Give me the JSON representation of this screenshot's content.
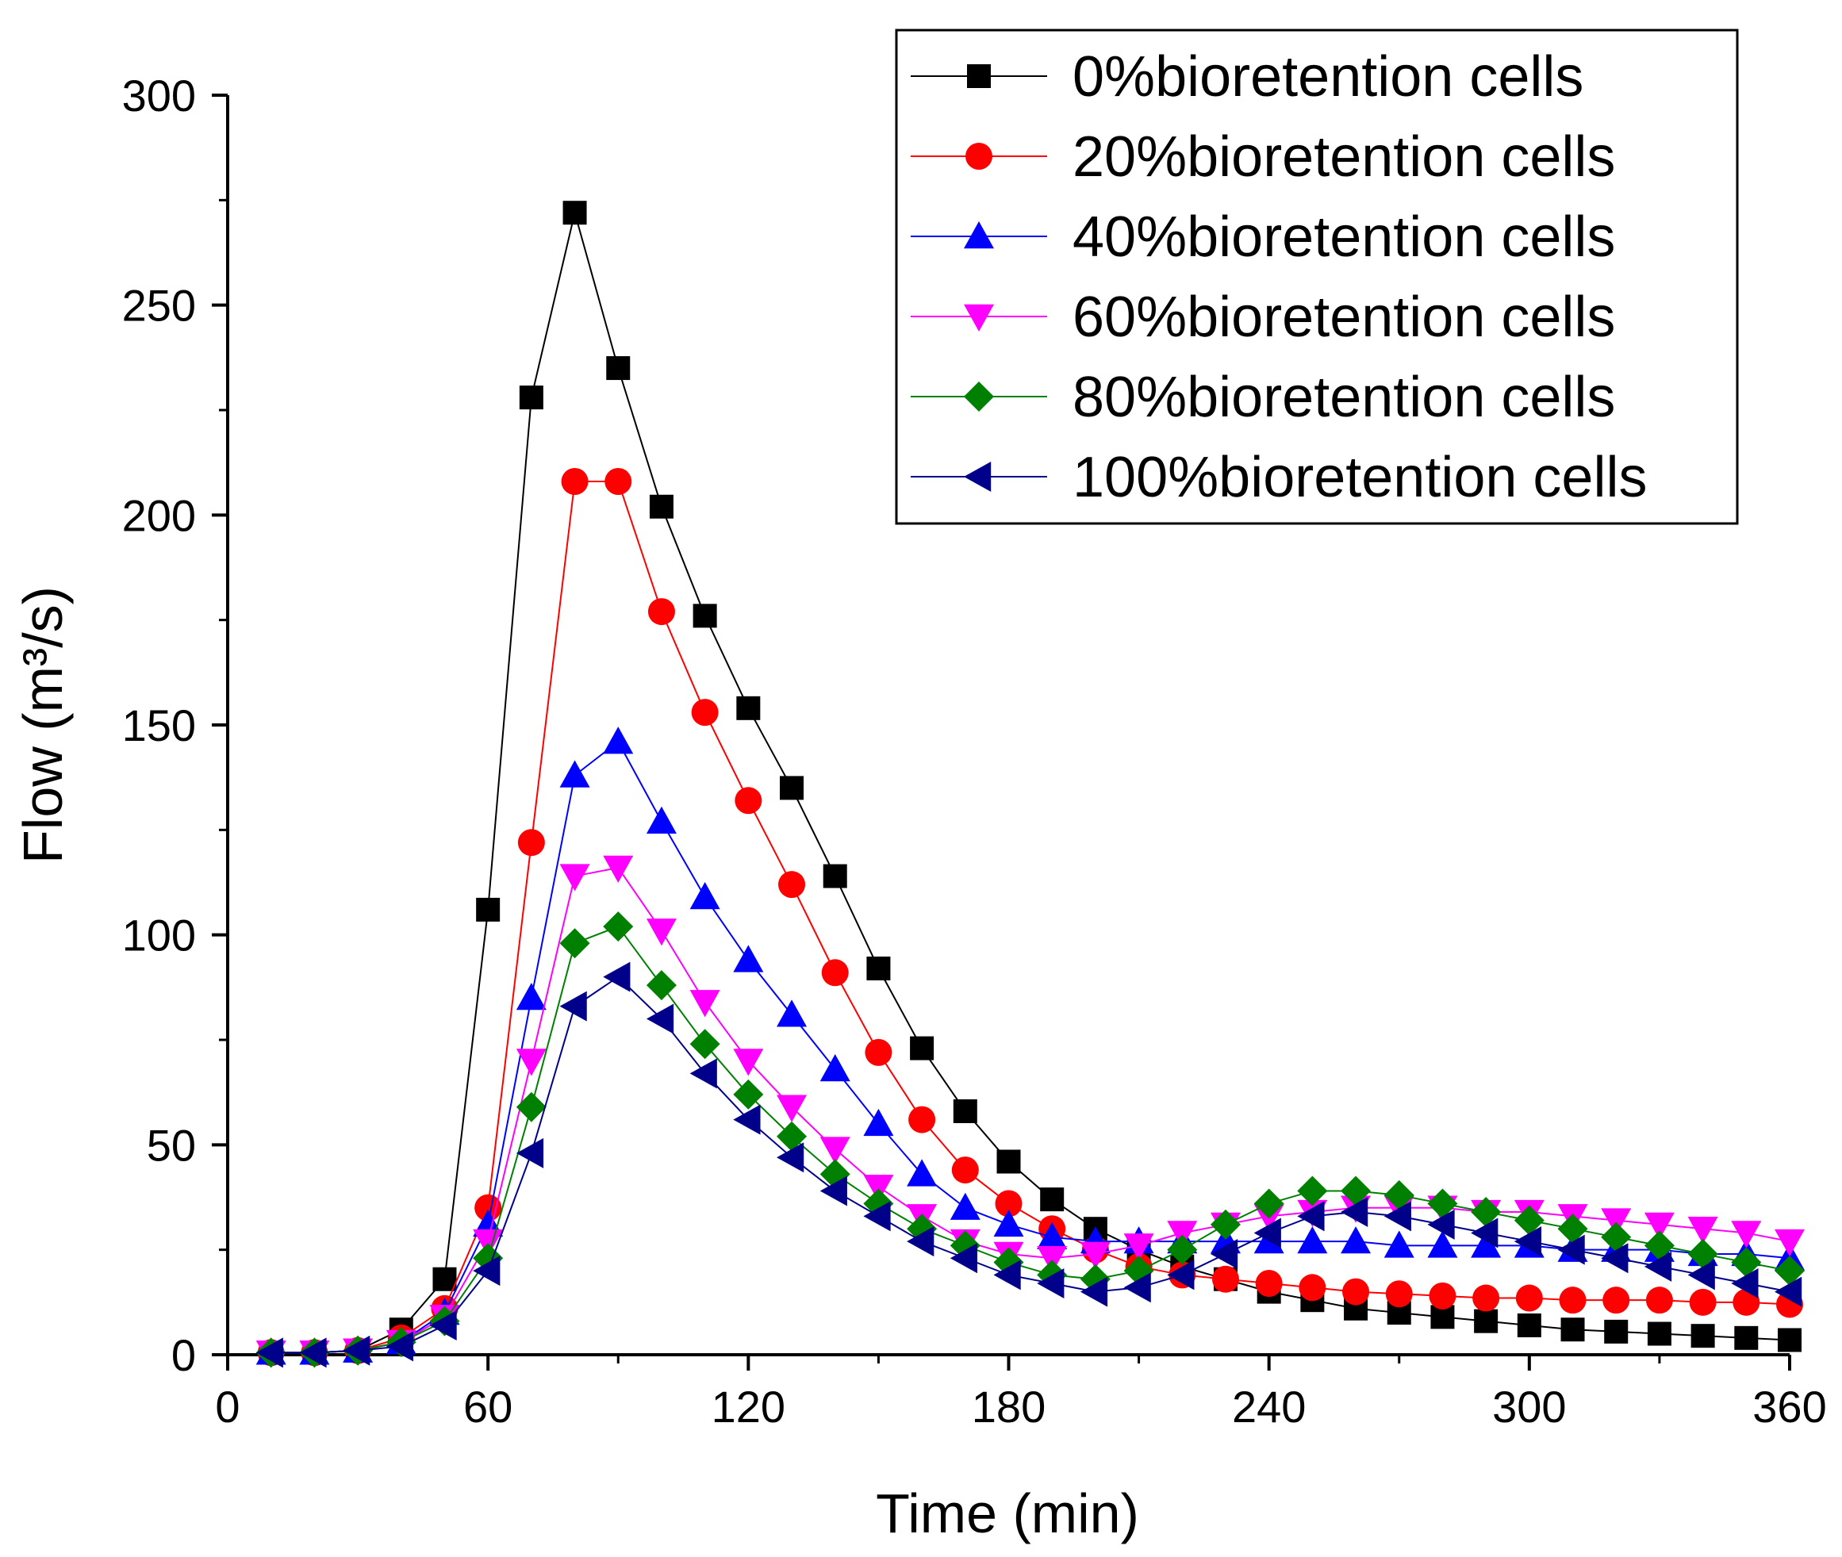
{
  "chart_data": {
    "type": "line",
    "title": "",
    "xlabel": "Time (min)",
    "ylabel": "Flow (m³/s)",
    "xlim": [
      0,
      360
    ],
    "ylim": [
      0,
      300
    ],
    "x_ticks": [
      0,
      60,
      120,
      180,
      240,
      300,
      360
    ],
    "y_ticks": [
      0,
      50,
      100,
      150,
      200,
      250,
      300
    ],
    "x_tick_labels": [
      "0",
      "60",
      "120",
      "180",
      "240",
      "300",
      "360"
    ],
    "y_tick_labels": [
      "0",
      "50",
      "100",
      "150",
      "200",
      "250",
      "300"
    ],
    "grid": false,
    "legend_position": "top-right",
    "x": [
      10,
      20,
      30,
      40,
      50,
      60,
      70,
      80,
      90,
      100,
      110,
      120,
      130,
      140,
      150,
      160,
      170,
      180,
      190,
      200,
      210,
      220,
      230,
      240,
      250,
      260,
      270,
      280,
      290,
      300,
      310,
      320,
      330,
      340,
      350,
      360
    ],
    "series": [
      {
        "name": "0%bioretention cells",
        "color": "#000000",
        "marker": "square",
        "values": [
          0.5,
          0.5,
          1,
          6,
          18,
          106,
          228,
          272,
          235,
          202,
          176,
          154,
          135,
          114,
          92,
          73,
          58,
          46,
          37,
          30,
          25,
          21,
          18,
          15,
          13,
          11,
          10,
          9,
          8,
          7,
          6,
          5.5,
          5,
          4.5,
          4,
          3.5
        ]
      },
      {
        "name": "20%bioretention cells",
        "color": "#ff0000",
        "marker": "circle",
        "values": [
          0.5,
          0.5,
          1,
          4,
          11,
          35,
          122,
          208,
          208,
          177,
          153,
          132,
          112,
          91,
          72,
          56,
          44,
          36,
          30,
          25,
          21,
          19,
          18,
          17,
          16,
          15,
          14.5,
          14,
          13.5,
          13.5,
          13,
          13,
          13,
          12.5,
          12.5,
          12
        ]
      },
      {
        "name": "40%bioretention cells",
        "color": "#0000ff",
        "marker": "triangle-up",
        "values": [
          0.5,
          0.5,
          1,
          3,
          10,
          31,
          85,
          138,
          146,
          127,
          109,
          94,
          81,
          68,
          55,
          43,
          35,
          31,
          28,
          27,
          27,
          27,
          27,
          27,
          27,
          27,
          26,
          26,
          26,
          26,
          25,
          25,
          25,
          24,
          24,
          23
        ]
      },
      {
        "name": "60%bioretention cells",
        "color": "#ff00ff",
        "marker": "triangle-down",
        "values": [
          0.5,
          0.5,
          1,
          3,
          9,
          27,
          70,
          114,
          116,
          101,
          84,
          70,
          59,
          49,
          40,
          33,
          27,
          24,
          23,
          24,
          26,
          29,
          31,
          33,
          34,
          35,
          35,
          35,
          34,
          34,
          33,
          32,
          31,
          30,
          29,
          27
        ]
      },
      {
        "name": "80%bioretention cells",
        "color": "#008000",
        "marker": "diamond",
        "values": [
          0.5,
          0.5,
          1,
          3,
          8,
          23,
          59,
          98,
          102,
          88,
          74,
          62,
          52,
          43,
          36,
          30,
          26,
          22,
          19,
          18,
          20,
          25,
          31,
          36,
          39,
          39,
          38,
          36,
          34,
          32,
          30,
          28,
          26,
          24,
          22,
          20
        ]
      },
      {
        "name": "100%bioretention cells",
        "color": "#00008b",
        "marker": "triangle-left",
        "values": [
          0.5,
          0.5,
          1,
          2,
          7,
          20,
          48,
          83,
          90,
          80,
          67,
          56,
          47,
          39,
          33,
          27,
          23,
          19,
          17,
          15,
          16,
          19,
          24,
          29,
          33,
          34,
          33,
          31,
          29,
          27,
          25,
          23,
          21,
          19,
          17,
          15
        ]
      }
    ]
  }
}
